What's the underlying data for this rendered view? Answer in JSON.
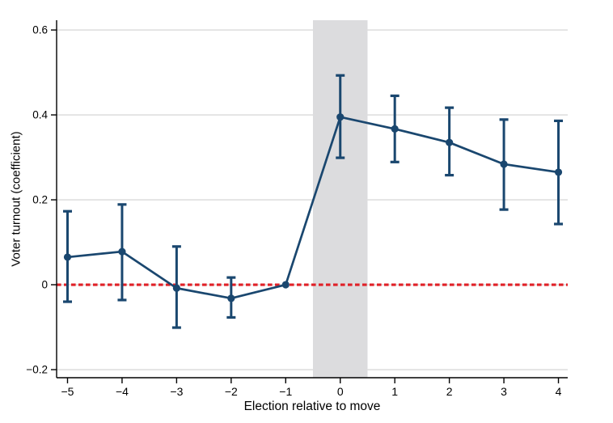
{
  "chart_data": {
    "type": "line",
    "subtype": "event-study-with-confidence-intervals",
    "title": "",
    "xlabel": "Election relative to move",
    "ylabel": "Voter turnout (coefficient)",
    "x": [
      -5,
      -4,
      -3,
      -2,
      -1,
      0,
      1,
      2,
      3,
      4
    ],
    "x_tick_labels": [
      "−5",
      "−4",
      "−3",
      "−2",
      "−1",
      "0",
      "1",
      "2",
      "3",
      "4"
    ],
    "estimates": [
      0.065,
      0.078,
      -0.008,
      -0.032,
      0,
      0.395,
      0.367,
      0.335,
      0.284,
      0.265
    ],
    "ci_low": [
      -0.04,
      -0.036,
      -0.101,
      -0.077,
      null,
      0.299,
      0.289,
      0.258,
      0.177,
      0.143
    ],
    "ci_high": [
      0.173,
      0.189,
      0.09,
      0.017,
      null,
      0.493,
      0.445,
      0.417,
      0.389,
      0.386
    ],
    "y_ticks": [
      -0.2,
      0,
      0.2,
      0.4,
      0.6
    ],
    "y_tick_labels": [
      "−0.2",
      "0",
      "0.2",
      "0.4",
      "0.6"
    ],
    "gridline_values": [
      0.6,
      0.4,
      0.2,
      0,
      -0.2
    ],
    "ylim": [
      -0.219,
      0.623
    ],
    "xlim": [
      -5.2,
      4.17
    ],
    "reference_line_y": 0,
    "shaded_band_x": [
      -0.5,
      0.5
    ],
    "legend": "none",
    "grid": "horizontal",
    "colors": {
      "series": "#1a476f",
      "reference_line": "#e02128",
      "band": "#dcdcde",
      "gridline": "#d1d1d1",
      "axis": "#000000",
      "background": "#ffffff"
    }
  }
}
